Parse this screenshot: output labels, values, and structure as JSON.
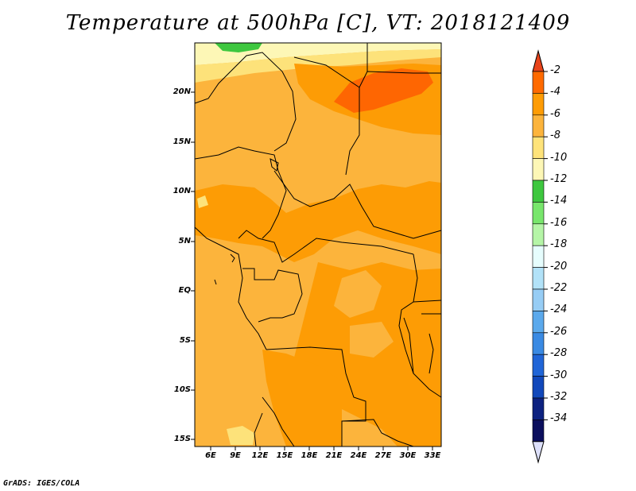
{
  "title": "Temperature at 500hPa [C], VT: 2018121409",
  "credit": "GrADS: IGES/COLA",
  "lat_labels": [
    "20N",
    "15N",
    "10N",
    "5N",
    "EQ",
    "5S",
    "10S",
    "15S"
  ],
  "lon_labels": [
    "6E",
    "9E",
    "12E",
    "15E",
    "18E",
    "21E",
    "24E",
    "27E",
    "30E",
    "33E"
  ],
  "colorbar": {
    "levels": [
      "-2",
      "-4",
      "-6",
      "-8",
      "-10",
      "-12",
      "-14",
      "-16",
      "-18",
      "-20",
      "-22",
      "-24",
      "-26",
      "-28",
      "-30",
      "-32",
      "-34"
    ],
    "colors": [
      "#e8431a",
      "#ff6a00",
      "#fe9c05",
      "#fcb43c",
      "#fee37a",
      "#fdf7b6",
      "#3ec73f",
      "#78e66c",
      "#b5f5a7",
      "#e6fdfd",
      "#b2e2f8",
      "#97cdf5",
      "#5ba9ec",
      "#3a8ae3",
      "#2065d7",
      "#1148bb",
      "#0d2280",
      "#0b0f5d",
      "#dde0fa"
    ]
  },
  "field_colors": {
    "deep_orange": "#fe6602",
    "orange": "#fd9c05",
    "light_orange": "#fcb43c",
    "yellow": "#fde27a",
    "pale_yellow": "#fdf7b6",
    "green": "#3ec73f"
  }
}
